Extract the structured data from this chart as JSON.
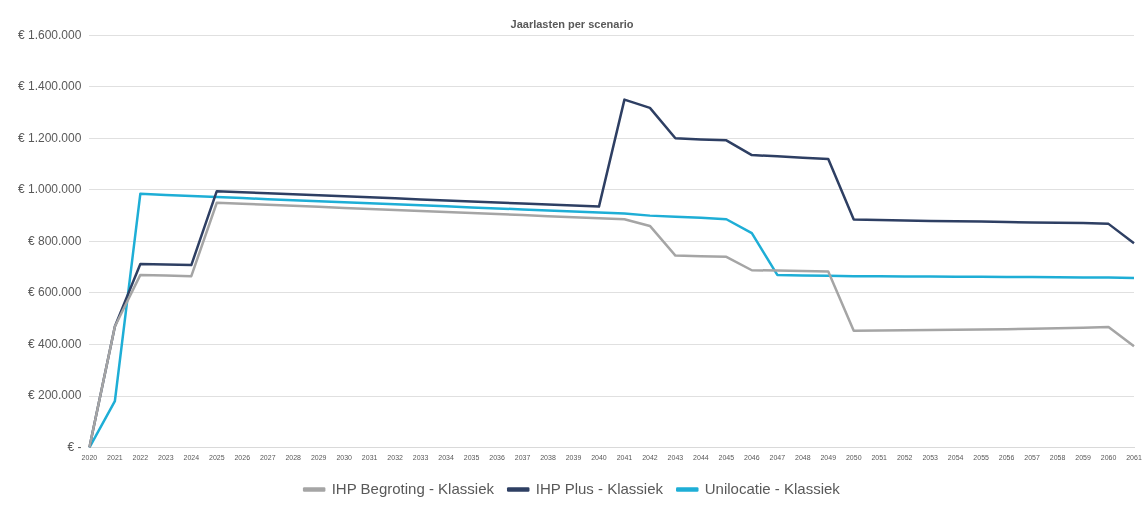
{
  "chart_data": {
    "type": "line",
    "title": "Jaarlasten per scenario",
    "categories": [
      "2020",
      "2021",
      "2022",
      "2023",
      "2024",
      "2025",
      "2026",
      "2027",
      "2028",
      "2029",
      "2030",
      "2031",
      "2032",
      "2033",
      "2034",
      "2035",
      "2036",
      "2037",
      "2038",
      "2039",
      "2040",
      "2041",
      "2042",
      "2043",
      "2044",
      "2045",
      "2046",
      "2047",
      "2048",
      "2049",
      "2050",
      "2051",
      "2052",
      "2053",
      "2054",
      "2055",
      "2056",
      "2057",
      "2058",
      "2059",
      "2060",
      "2061"
    ],
    "series": [
      {
        "name": "IHP Begroting - Klassiek",
        "color": "#a5a5a5",
        "values": [
          0,
          470000,
          670000,
          668000,
          665000,
          950000,
          946000,
          942000,
          938000,
          934000,
          930000,
          926000,
          922000,
          918000,
          914000,
          910000,
          906000,
          902000,
          898000,
          894000,
          890000,
          886000,
          860000,
          745000,
          742000,
          740000,
          688000,
          687000,
          685000,
          683000,
          453000,
          454000,
          455000,
          456000,
          457000,
          458000,
          459000,
          461000,
          463000,
          465000,
          468000,
          393000
        ]
      },
      {
        "name": "IHP Plus - Klassiek",
        "color": "#2e3f63",
        "values": [
          0,
          470000,
          712000,
          710000,
          708000,
          995000,
          991000,
          987000,
          983000,
          979000,
          975000,
          971000,
          967000,
          963000,
          959000,
          955000,
          951000,
          947000,
          943000,
          939000,
          935000,
          1350000,
          1318000,
          1200000,
          1195000,
          1192000,
          1135000,
          1130000,
          1125000,
          1120000,
          885000,
          883000,
          881000,
          879000,
          878000,
          877000,
          875000,
          873000,
          872000,
          871000,
          868000,
          793000
        ]
      },
      {
        "name": "Unilocatie - Klassiek",
        "color": "#1eaed6",
        "values": [
          0,
          180000,
          985000,
          980000,
          976000,
          972000,
          968000,
          964000,
          960000,
          956000,
          952000,
          948000,
          944000,
          940000,
          936000,
          932000,
          928000,
          924000,
          920000,
          916000,
          912000,
          908000,
          900000,
          896000,
          892000,
          886000,
          832000,
          670000,
          668000,
          667000,
          665000,
          665000,
          664000,
          664000,
          663000,
          663000,
          662000,
          662000,
          661000,
          660000,
          660000,
          658000
        ]
      }
    ],
    "ylim": [
      0,
      1600000
    ],
    "yticks": [
      {
        "value": 0,
        "label": "€ -"
      },
      {
        "value": 200000,
        "label": "€ 200.000"
      },
      {
        "value": 400000,
        "label": "€ 400.000"
      },
      {
        "value": 600000,
        "label": "€ 600.000"
      },
      {
        "value": 800000,
        "label": "€ 800.000"
      },
      {
        "value": 1000000,
        "label": "€ 1.000.000"
      },
      {
        "value": 1200000,
        "label": "€ 1.200.000"
      },
      {
        "value": 1400000,
        "label": "€ 1.400.000"
      },
      {
        "value": 1600000,
        "label": "€ 1.600.000"
      }
    ],
    "grid": "y",
    "legend": "bottom",
    "marker": "none",
    "line_style": "solid"
  }
}
